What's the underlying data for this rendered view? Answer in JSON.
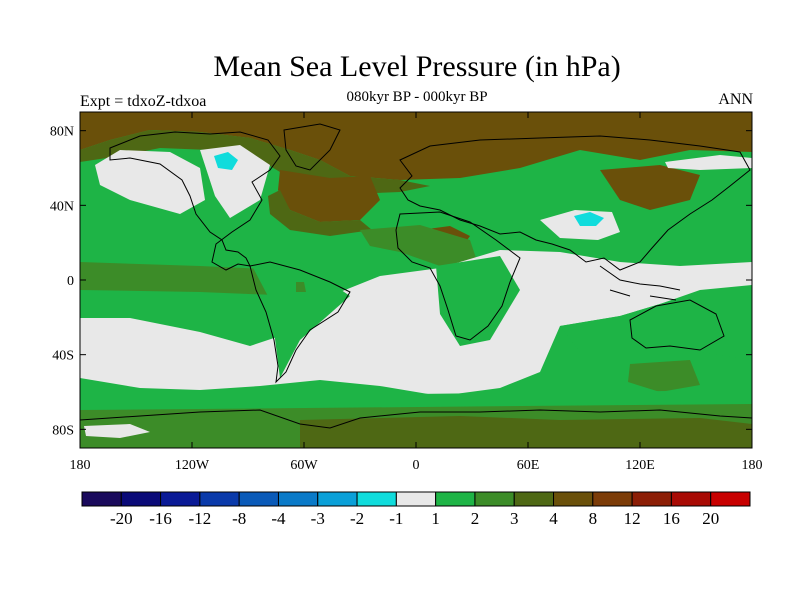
{
  "title": "Mean Sea Level Pressure (in hPa)",
  "subtitle": "080kyr BP - 000kyr BP",
  "left_label": "Expt = tdxoZ-tdxoa",
  "right_label": "ANN",
  "x_ticks": [
    {
      "lon": -180,
      "label": "180"
    },
    {
      "lon": -120,
      "label": "120W"
    },
    {
      "lon": -60,
      "label": "60W"
    },
    {
      "lon": 0,
      "label": "0"
    },
    {
      "lon": 60,
      "label": "60E"
    },
    {
      "lon": 120,
      "label": "120E"
    },
    {
      "lon": 180,
      "label": "180"
    }
  ],
  "y_ticks": [
    {
      "lat": 80,
      "label": "80N"
    },
    {
      "lat": 40,
      "label": "40N"
    },
    {
      "lat": 0,
      "label": "0"
    },
    {
      "lat": -40,
      "label": "40S"
    },
    {
      "lat": -80,
      "label": "80S"
    }
  ],
  "colorbar": {
    "colors": [
      "#1a0a5c",
      "#0a0a78",
      "#0a1a96",
      "#0a3aaa",
      "#0a5ab8",
      "#0a7ac8",
      "#0aa0d8",
      "#10dcdc",
      "#e8e8e8",
      "#1eb446",
      "#3c8c28",
      "#4e6814",
      "#6a500a",
      "#7c3c08",
      "#8c1e06",
      "#a80a04",
      "#c80000"
    ],
    "labels": [
      "-20",
      "-16",
      "-12",
      "-8",
      "-4",
      "-3",
      "-2",
      "-1",
      "1",
      "2",
      "3",
      "4",
      "8",
      "12",
      "16",
      "20"
    ]
  },
  "map": {
    "ocean_color": "#e8e8e8",
    "green_color": "#1eb446",
    "dark_green_color": "#3c8c28",
    "olive_color": "#4e6814",
    "brown_color": "#6a500a",
    "cyan_color": "#10dcdc"
  }
}
